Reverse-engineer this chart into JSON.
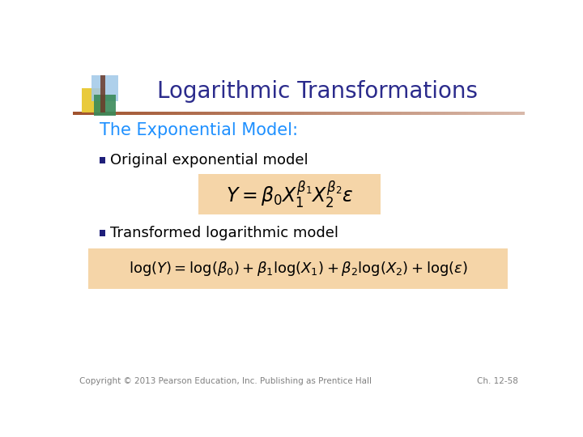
{
  "title": "Logarithmic Transformations",
  "title_color": "#2B2B8C",
  "subtitle": "The Exponential Model:",
  "subtitle_color": "#1E90FF",
  "bullet1": "Original exponential model",
  "bullet2": "Transformed logarithmic model",
  "bullet_color": "#000000",
  "bullet_square_color": "#1F1F7A",
  "formula1": "$Y = \\mathbf{\\beta_0} X_1^{\\beta_1} X_2^{\\beta_2} \\varepsilon$",
  "formula2": "$\\mathrm{log}(Y) = \\mathrm{log}(\\beta_0) + \\beta_1 \\mathrm{log}(X_1) + \\beta_2 \\mathrm{log}(X_2) + \\mathrm{log}(\\varepsilon)$",
  "formula_bg": "#F5D5A8",
  "formula_text_color": "#000000",
  "header_line_color": "#A0522D",
  "bg_color": "#FFFFFF",
  "copyright_text": "Copyright © 2013 Pearson Education, Inc. Publishing as Prentice Hall",
  "chapter_text": "Ch. 12-58",
  "footer_color": "#808080",
  "title_fontsize": 20,
  "subtitle_fontsize": 15,
  "bullet_fontsize": 13,
  "formula1_fontsize": 17,
  "formula2_fontsize": 13,
  "footer_fontsize": 7.5,
  "icon_yellow": "#E8C830",
  "icon_blue": "#A0C8E8",
  "icon_green": "#3A8A5A",
  "icon_brown": "#6B3A2A"
}
